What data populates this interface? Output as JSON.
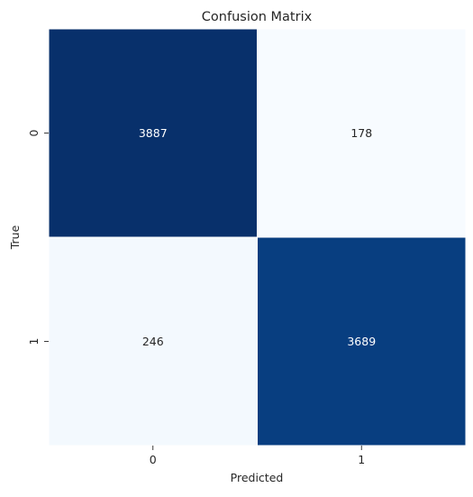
{
  "chart_data": {
    "type": "heatmap",
    "title": "Confusion Matrix",
    "xlabel": "Predicted",
    "ylabel": "True",
    "x_categories": [
      "0",
      "1"
    ],
    "y_categories": [
      "0",
      "1"
    ],
    "values": [
      [
        3887,
        178
      ],
      [
        246,
        3689
      ]
    ],
    "colormap": "Blues",
    "color_low": "#f7fbff",
    "color_high": "#08306b",
    "text_color_dark_cell": "#ffffff",
    "text_color_light_cell": "#262626",
    "grid": false,
    "colorbar": false
  }
}
